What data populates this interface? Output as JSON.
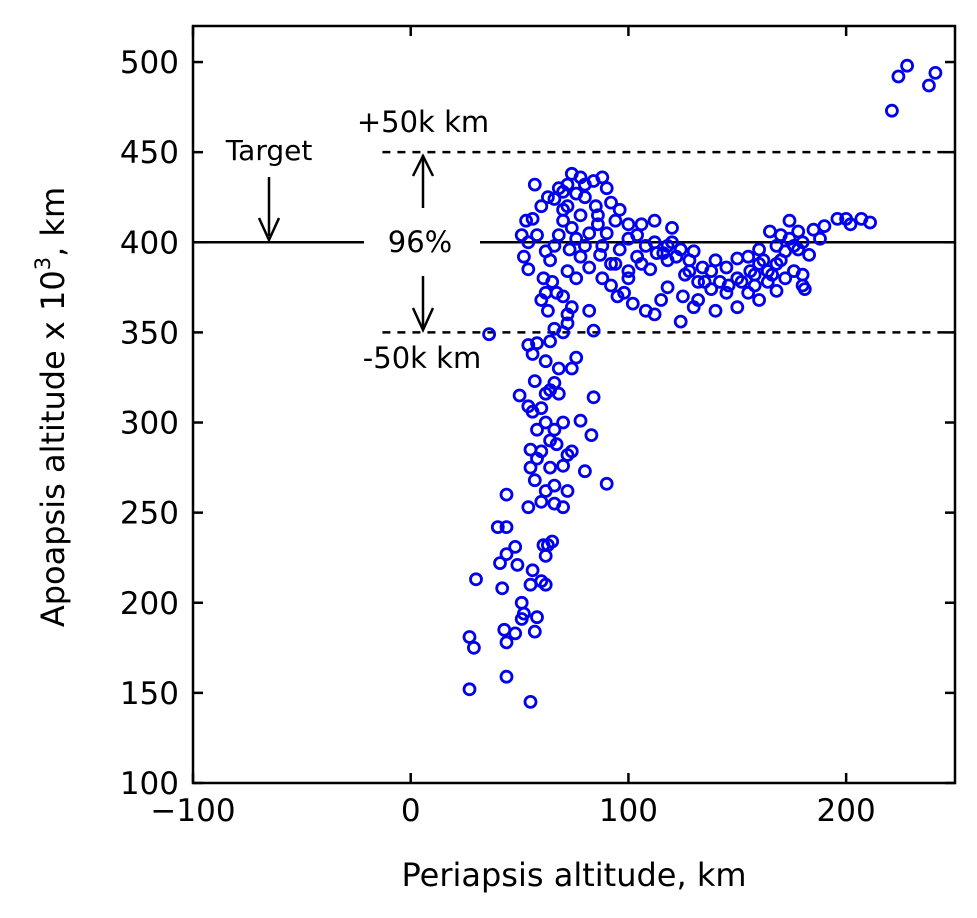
{
  "chart_data": {
    "type": "scatter",
    "title": "",
    "xlabel": "Periapsis altitude, km",
    "ylabel_main": "Apoapsis altitude x 10",
    "ylabel_sup": "3",
    "ylabel_tail": ", km",
    "xlim": [
      -100,
      250
    ],
    "ylim": [
      100,
      520
    ],
    "xticks": [
      -100,
      0,
      100,
      200
    ],
    "xtick_labels": [
      "−100",
      "0",
      "100",
      "200"
    ],
    "yticks": [
      100,
      150,
      200,
      250,
      300,
      350,
      400,
      450,
      500
    ],
    "ytick_labels": [
      "100",
      "150",
      "200",
      "250",
      "300",
      "350",
      "400",
      "450",
      "500"
    ],
    "grid": false,
    "legend": "none",
    "marker": "open-circle",
    "marker_color": "#0000ee",
    "reference_lines": [
      {
        "y": 450,
        "style": "dashed",
        "x_start": -13
      },
      {
        "y": 400,
        "style": "solid"
      },
      {
        "y": 350,
        "style": "dashed",
        "x_start": -13
      }
    ],
    "annotations": {
      "upper": "+50k km",
      "lower": "-50k km",
      "target": "Target",
      "percent": "96%"
    },
    "points": [
      [
        55,
        145
      ],
      [
        27,
        152
      ],
      [
        44,
        159
      ],
      [
        29,
        175
      ],
      [
        27,
        181
      ],
      [
        43,
        185
      ],
      [
        48,
        183
      ],
      [
        57,
        184
      ],
      [
        44,
        178
      ],
      [
        51,
        191
      ],
      [
        52,
        194
      ],
      [
        58,
        192
      ],
      [
        55,
        210
      ],
      [
        51,
        200
      ],
      [
        56,
        218
      ],
      [
        60,
        212
      ],
      [
        62,
        210
      ],
      [
        30,
        213
      ],
      [
        42,
        208
      ],
      [
        49,
        221
      ],
      [
        41,
        222
      ],
      [
        62,
        226
      ],
      [
        44,
        227
      ],
      [
        48,
        231
      ],
      [
        61,
        232
      ],
      [
        63,
        232
      ],
      [
        65,
        234
      ],
      [
        40,
        242
      ],
      [
        44,
        242
      ],
      [
        54,
        253
      ],
      [
        60,
        256
      ],
      [
        66,
        255
      ],
      [
        70,
        253
      ],
      [
        72,
        262
      ],
      [
        44,
        260
      ],
      [
        62,
        262
      ],
      [
        66,
        265
      ],
      [
        57,
        268
      ],
      [
        64,
        275
      ],
      [
        55,
        275
      ],
      [
        58,
        280
      ],
      [
        70,
        276
      ],
      [
        72,
        282
      ],
      [
        80,
        273
      ],
      [
        90,
        266
      ],
      [
        55,
        285
      ],
      [
        60,
        284
      ],
      [
        64,
        290
      ],
      [
        67,
        288
      ],
      [
        74,
        284
      ],
      [
        83,
        293
      ],
      [
        58,
        296
      ],
      [
        62,
        300
      ],
      [
        66,
        296
      ],
      [
        70,
        300
      ],
      [
        78,
        301
      ],
      [
        56,
        306
      ],
      [
        60,
        308
      ],
      [
        62,
        316
      ],
      [
        54,
        309
      ],
      [
        50,
        315
      ],
      [
        57,
        323
      ],
      [
        64,
        318
      ],
      [
        68,
        316
      ],
      [
        74,
        330
      ],
      [
        76,
        336
      ],
      [
        84,
        314
      ],
      [
        66,
        322
      ],
      [
        62,
        334
      ],
      [
        56,
        338
      ],
      [
        54,
        343
      ],
      [
        64,
        345
      ],
      [
        66,
        352
      ],
      [
        70,
        350
      ],
      [
        72,
        355
      ],
      [
        58,
        344
      ],
      [
        36,
        349
      ],
      [
        68,
        330
      ],
      [
        62,
        372
      ],
      [
        65,
        378
      ],
      [
        72,
        360
      ],
      [
        74,
        364
      ],
      [
        70,
        370
      ],
      [
        76,
        380
      ],
      [
        60,
        368
      ],
      [
        54,
        385
      ],
      [
        52,
        392
      ],
      [
        54,
        400
      ],
      [
        53,
        412
      ],
      [
        56,
        413
      ],
      [
        58,
        404
      ],
      [
        51,
        404
      ],
      [
        63,
        425
      ],
      [
        57,
        432
      ],
      [
        60,
        420
      ],
      [
        82,
        362
      ],
      [
        84,
        351
      ],
      [
        108,
        362
      ],
      [
        112,
        360
      ],
      [
        124,
        356
      ],
      [
        130,
        364
      ],
      [
        140,
        362
      ],
      [
        150,
        364
      ],
      [
        160,
        368
      ],
      [
        168,
        373
      ],
      [
        172,
        380
      ],
      [
        176,
        384
      ],
      [
        180,
        376
      ],
      [
        180,
        382
      ],
      [
        181,
        374
      ],
      [
        183,
        393
      ],
      [
        180,
        400
      ],
      [
        185,
        407
      ],
      [
        190,
        409
      ],
      [
        196,
        413
      ],
      [
        200,
        413
      ],
      [
        202,
        410
      ],
      [
        207,
        413
      ],
      [
        211,
        411
      ],
      [
        174,
        412
      ],
      [
        165,
        406
      ],
      [
        170,
        404
      ],
      [
        106,
        410
      ],
      [
        112,
        412
      ],
      [
        120,
        408
      ],
      [
        150,
        391
      ],
      [
        160,
        388
      ],
      [
        188,
        402
      ],
      [
        221,
        473
      ],
      [
        224,
        492
      ],
      [
        228,
        498
      ],
      [
        238,
        487
      ],
      [
        241,
        494
      ],
      [
        120,
        400
      ],
      [
        130,
        395
      ],
      [
        140,
        390
      ],
      [
        100,
        380
      ],
      [
        95,
        370
      ],
      [
        92,
        388
      ],
      [
        88,
        398
      ],
      [
        86,
        410
      ],
      [
        78,
        415
      ],
      [
        72,
        420
      ],
      [
        68,
        430
      ],
      [
        70,
        428
      ],
      [
        74,
        438
      ],
      [
        80,
        432
      ],
      [
        84,
        434
      ],
      [
        90,
        430
      ],
      [
        66,
        398
      ],
      [
        64,
        390
      ],
      [
        62,
        395
      ],
      [
        61,
        380
      ],
      [
        135,
        378
      ],
      [
        145,
        372
      ],
      [
        155,
        372
      ],
      [
        118,
        375
      ],
      [
        115,
        368
      ],
      [
        102,
        366
      ],
      [
        98,
        372
      ],
      [
        125,
        370
      ],
      [
        132,
        368
      ],
      [
        110,
        385
      ],
      [
        104,
        392
      ],
      [
        96,
        396
      ],
      [
        90,
        405
      ],
      [
        85,
        420
      ],
      [
        80,
        425
      ],
      [
        76,
        427
      ],
      [
        70,
        412
      ],
      [
        68,
        404
      ],
      [
        73,
        396
      ],
      [
        78,
        392
      ],
      [
        82,
        386
      ],
      [
        88,
        380
      ],
      [
        92,
        376
      ],
      [
        164,
        378
      ],
      [
        168,
        388
      ],
      [
        172,
        395
      ],
      [
        176,
        398
      ],
      [
        160,
        396
      ],
      [
        155,
        392
      ],
      [
        145,
        386
      ],
      [
        138,
        384
      ],
      [
        126,
        382
      ],
      [
        118,
        390
      ],
      [
        113,
        394
      ],
      [
        108,
        398
      ],
      [
        100,
        402
      ],
      [
        94,
        412
      ],
      [
        86,
        415
      ],
      [
        82,
        405
      ],
      [
        76,
        402
      ],
      [
        72,
        384
      ],
      [
        67,
        372
      ],
      [
        63,
        362
      ],
      [
        150,
        380
      ],
      [
        156,
        384
      ],
      [
        162,
        390
      ],
      [
        168,
        398
      ],
      [
        174,
        402
      ],
      [
        178,
        406
      ],
      [
        166,
        382
      ],
      [
        158,
        376
      ],
      [
        142,
        378
      ],
      [
        134,
        386
      ],
      [
        128,
        390
      ],
      [
        122,
        392
      ],
      [
        116,
        394
      ],
      [
        106,
        388
      ],
      [
        100,
        384
      ],
      [
        94,
        388
      ],
      [
        87,
        393
      ],
      [
        80,
        398
      ],
      [
        74,
        408
      ],
      [
        70,
        418
      ],
      [
        66,
        424
      ],
      [
        72,
        432
      ],
      [
        78,
        436
      ],
      [
        88,
        436
      ],
      [
        92,
        422
      ],
      [
        96,
        418
      ],
      [
        100,
        410
      ],
      [
        104,
        404
      ],
      [
        112,
        400
      ],
      [
        118,
        398
      ],
      [
        124,
        396
      ],
      [
        128,
        384
      ],
      [
        132,
        378
      ],
      [
        138,
        374
      ],
      [
        146,
        376
      ],
      [
        152,
        378
      ],
      [
        158,
        382
      ],
      [
        164,
        384
      ],
      [
        170,
        390
      ],
      [
        178,
        396
      ]
    ]
  }
}
